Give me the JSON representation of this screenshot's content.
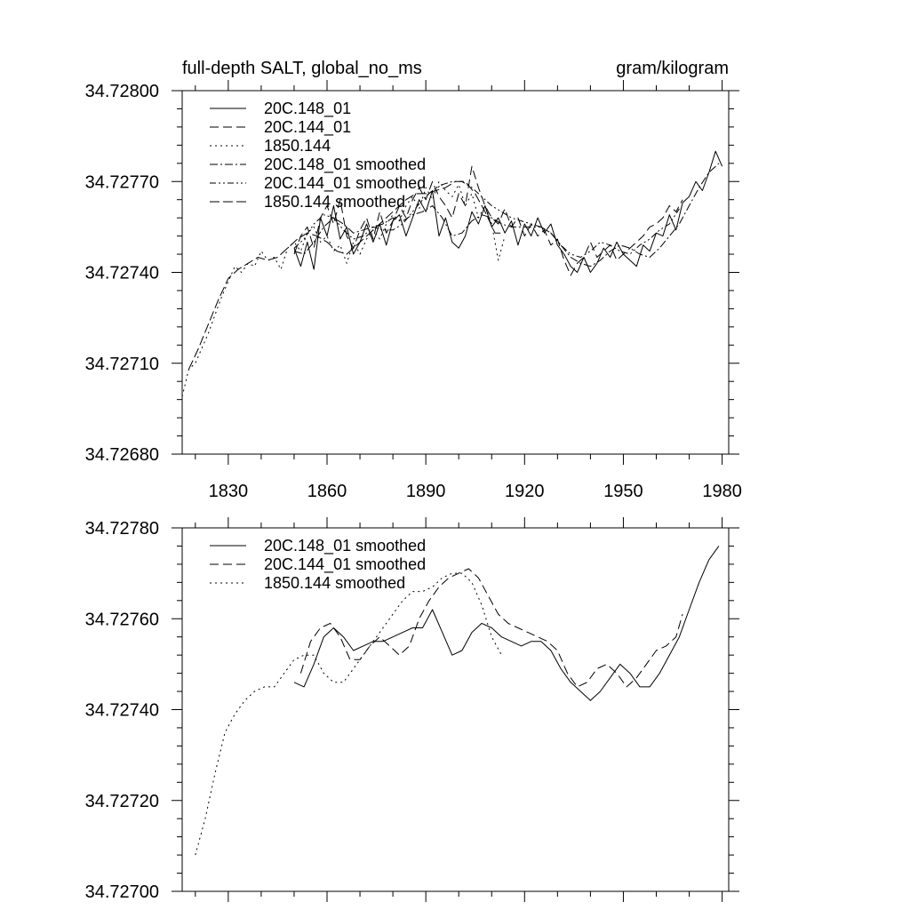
{
  "chart_data": [
    {
      "type": "line",
      "title": "full-depth SALT, global_no_ms",
      "units": "gram/kilogram",
      "xlim": [
        1816,
        1982
      ],
      "ylim": [
        34.7268,
        34.728
      ],
      "x_ticks": [
        1830,
        1860,
        1890,
        1920,
        1950,
        1980
      ],
      "x_tick_labels": [
        "1830",
        "1860",
        "1890",
        "1920",
        "1950",
        "1980"
      ],
      "y_ticks": [
        34.7268,
        34.7271,
        34.7274,
        34.7277,
        34.728
      ],
      "y_tick_labels": [
        "34.72680",
        "34.72710",
        "34.72740",
        "34.72770",
        "34.72800"
      ],
      "legend": [
        "20C.148_01",
        "20C.144_01",
        "1850.144",
        "20C.148_01 smoothed",
        "20C.144_01 smoothed",
        "1850.144 smoothed"
      ],
      "series": [
        {
          "name": "20C.148_01",
          "style": "solid",
          "x": [
            1850,
            1852,
            1854,
            1856,
            1858,
            1860,
            1862,
            1864,
            1866,
            1868,
            1870,
            1872,
            1874,
            1876,
            1878,
            1880,
            1882,
            1884,
            1886,
            1888,
            1890,
            1892,
            1894,
            1896,
            1898,
            1900,
            1902,
            1904,
            1906,
            1908,
            1910,
            1912,
            1914,
            1916,
            1918,
            1920,
            1922,
            1924,
            1926,
            1928,
            1930,
            1932,
            1934,
            1936,
            1938,
            1940,
            1942,
            1944,
            1946,
            1948,
            1950,
            1952,
            1954,
            1956,
            1958,
            1960,
            1962,
            1964,
            1966,
            1968,
            1970,
            1972,
            1974,
            1976,
            1978,
            1980
          ],
          "values": [
            34.72748,
            34.72742,
            34.7275,
            34.72741,
            34.72758,
            34.72752,
            34.72762,
            34.72751,
            34.72755,
            34.72746,
            34.7275,
            34.72756,
            34.7275,
            34.72756,
            34.72749,
            34.72757,
            34.72759,
            34.72752,
            34.72758,
            34.72764,
            34.7276,
            34.72767,
            34.72752,
            34.72758,
            34.7275,
            34.72748,
            34.72752,
            34.7276,
            34.72756,
            34.72762,
            34.72755,
            34.72758,
            34.72753,
            34.72757,
            34.72749,
            34.72756,
            34.72752,
            34.72758,
            34.72753,
            34.72756,
            34.72749,
            34.72746,
            34.72742,
            34.7274,
            34.72745,
            34.7274,
            34.72743,
            34.72748,
            34.72745,
            34.7275,
            34.72746,
            34.72744,
            34.72742,
            34.72749,
            34.72747,
            34.72753,
            34.72752,
            34.72759,
            34.72754,
            34.72763,
            34.72765,
            34.7277,
            34.72767,
            34.72773,
            34.7278,
            34.72775
          ]
        },
        {
          "name": "20C.144_01",
          "style": "dashed",
          "x": [
            1850,
            1852,
            1854,
            1856,
            1858,
            1860,
            1862,
            1864,
            1866,
            1868,
            1870,
            1872,
            1874,
            1876,
            1878,
            1880,
            1882,
            1884,
            1886,
            1888,
            1890,
            1892,
            1894,
            1896,
            1898,
            1900,
            1902,
            1904,
            1906,
            1908,
            1910,
            1912,
            1914,
            1916,
            1918,
            1920,
            1922,
            1924,
            1926,
            1928,
            1930,
            1932,
            1934,
            1936,
            1938,
            1940,
            1942,
            1944,
            1946,
            1948,
            1950,
            1952,
            1954,
            1956,
            1958,
            1960,
            1962,
            1964,
            1966,
            1968
          ],
          "values": [
            34.72746,
            34.72752,
            34.72755,
            34.72748,
            34.72758,
            34.72762,
            34.72756,
            34.72764,
            34.72752,
            34.72748,
            34.72754,
            34.72758,
            34.72751,
            34.7276,
            34.72753,
            34.72757,
            34.72762,
            34.72758,
            34.72764,
            34.72768,
            34.72764,
            34.7277,
            34.72765,
            34.72762,
            34.72758,
            34.72766,
            34.72762,
            34.72775,
            34.72768,
            34.72762,
            34.72758,
            34.72756,
            34.72761,
            34.72755,
            34.72758,
            34.72752,
            34.72756,
            34.72752,
            34.72754,
            34.72749,
            34.72751,
            34.72744,
            34.72739,
            34.72743,
            34.72745,
            34.7275,
            34.72745,
            34.72747,
            34.72749,
            34.72744,
            34.72746,
            34.72748,
            34.7275,
            34.72752,
            34.72755,
            34.72756,
            34.72758,
            34.72762,
            34.7276,
            34.72764
          ]
        },
        {
          "name": "1850.144",
          "style": "dotted",
          "x": [
            1816,
            1818,
            1820,
            1822,
            1824,
            1826,
            1828,
            1830,
            1832,
            1834,
            1836,
            1838,
            1840,
            1842,
            1844,
            1846,
            1848,
            1850,
            1852,
            1854,
            1856,
            1858,
            1860,
            1862,
            1864,
            1866,
            1868,
            1870,
            1872,
            1874,
            1876,
            1878,
            1880,
            1882,
            1884,
            1886,
            1888,
            1890,
            1892,
            1894,
            1896,
            1898,
            1900,
            1902,
            1904,
            1906,
            1908,
            1910,
            1912,
            1914
          ],
          "values": [
            34.72699,
            34.72708,
            34.7271,
            34.72715,
            34.7272,
            34.72726,
            34.72732,
            34.72737,
            34.72742,
            34.7274,
            34.72743,
            34.72742,
            34.72747,
            34.72744,
            34.72745,
            34.72741,
            34.72748,
            34.7275,
            34.72747,
            34.72753,
            34.72755,
            34.7275,
            34.72752,
            34.72747,
            34.72749,
            34.72743,
            34.7275,
            34.72746,
            34.72751,
            34.72754,
            34.72751,
            34.72756,
            34.72759,
            34.72757,
            34.72762,
            34.72765,
            34.72761,
            34.72768,
            34.72764,
            34.7277,
            34.72767,
            34.72765,
            34.72769,
            34.72762,
            34.72766,
            34.72758,
            34.72762,
            34.72756,
            34.72744,
            34.72752
          ]
        },
        {
          "name": "20C.148_01 smoothed",
          "style": "dash-dot",
          "x": [
            1850,
            1853,
            1856,
            1859,
            1862,
            1865,
            1868,
            1871,
            1874,
            1877,
            1880,
            1883,
            1886,
            1889,
            1892,
            1895,
            1898,
            1901,
            1904,
            1907,
            1910,
            1913,
            1916,
            1919,
            1922,
            1925,
            1928,
            1931,
            1934,
            1937,
            1940,
            1943,
            1946,
            1949,
            1952,
            1955,
            1958,
            1961,
            1964,
            1967,
            1970,
            1973,
            1976,
            1979
          ],
          "values": [
            34.72747,
            34.72746,
            34.7275,
            34.72755,
            34.72758,
            34.72756,
            34.72753,
            34.72754,
            34.72755,
            34.72756,
            34.72758,
            34.72757,
            34.72759,
            34.7276,
            34.72762,
            34.72758,
            34.72752,
            34.72753,
            34.72757,
            34.72759,
            34.72758,
            34.72756,
            34.72755,
            34.72755,
            34.72755,
            34.72755,
            34.72753,
            34.72749,
            34.72745,
            34.72743,
            34.72742,
            34.72744,
            34.72747,
            34.72749,
            34.72748,
            34.72746,
            34.72745,
            34.72748,
            34.72752,
            34.72756,
            34.72762,
            34.72768,
            34.72773,
            34.72776
          ]
        },
        {
          "name": "20C.144_01 smoothed",
          "style": "dash-dot-dot",
          "x": [
            1850,
            1853,
            1856,
            1859,
            1862,
            1865,
            1868,
            1871,
            1874,
            1877,
            1880,
            1883,
            1886,
            1889,
            1892,
            1895,
            1898,
            1901,
            1904,
            1907,
            1910,
            1913,
            1916,
            1919,
            1922,
            1925,
            1928,
            1931,
            1934,
            1937,
            1940,
            1943,
            1946,
            1949,
            1952,
            1955,
            1958,
            1961,
            1964,
            1967
          ],
          "values": [
            34.72748,
            34.72751,
            34.72756,
            34.72759,
            34.72758,
            34.72754,
            34.72751,
            34.72752,
            34.72755,
            34.72754,
            34.72754,
            34.72756,
            34.7276,
            34.72764,
            34.72767,
            34.72769,
            34.7277,
            34.7277,
            34.72768,
            34.72765,
            34.72762,
            34.7276,
            34.72758,
            34.72757,
            34.72756,
            34.72755,
            34.72753,
            34.72749,
            34.72746,
            34.72745,
            34.72747,
            34.7275,
            34.72749,
            34.72747,
            34.72746,
            34.72749,
            34.72751,
            34.72754,
            34.72756,
            34.72761
          ]
        },
        {
          "name": "1850.144 smoothed",
          "style": "long-dash",
          "x": [
            1818,
            1821,
            1824,
            1827,
            1830,
            1833,
            1836,
            1839,
            1842,
            1845,
            1848,
            1851,
            1854,
            1857,
            1860,
            1863,
            1866,
            1869,
            1872,
            1875,
            1878,
            1881,
            1884,
            1887,
            1890,
            1893,
            1896,
            1899,
            1902,
            1905,
            1908,
            1911,
            1913
          ],
          "values": [
            34.72708,
            34.72715,
            34.72723,
            34.72731,
            34.72738,
            34.72741,
            34.72743,
            34.72745,
            34.72744,
            34.72745,
            34.72748,
            34.72751,
            34.72753,
            34.72752,
            34.7275,
            34.72747,
            34.72746,
            34.72749,
            34.72752,
            34.72755,
            34.72758,
            34.72761,
            34.72764,
            34.72766,
            34.72766,
            34.72767,
            34.72768,
            34.7277,
            34.7277,
            34.72766,
            34.7276,
            34.72753,
            34.72753
          ]
        }
      ]
    },
    {
      "type": "line",
      "title": "",
      "xlim": [
        1816,
        1982
      ],
      "ylim": [
        34.727,
        34.7278
      ],
      "x_ticks": [
        1830,
        1860,
        1890,
        1920,
        1950,
        1980
      ],
      "y_ticks": [
        34.727,
        34.7272,
        34.7274,
        34.7276,
        34.7278
      ],
      "y_tick_labels": [
        "34.72700",
        "34.72720",
        "34.72740",
        "34.72760",
        "34.72780"
      ],
      "legend": [
        "20C.148_01 smoothed",
        "20C.144_01 smoothed",
        "1850.144 smoothed"
      ],
      "series": [
        {
          "name": "20C.148_01 smoothed",
          "style": "solid",
          "x": [
            1850,
            1853,
            1856,
            1859,
            1862,
            1865,
            1868,
            1871,
            1874,
            1877,
            1880,
            1883,
            1886,
            1889,
            1892,
            1895,
            1898,
            1901,
            1904,
            1907,
            1910,
            1913,
            1916,
            1919,
            1922,
            1925,
            1928,
            1931,
            1934,
            1937,
            1940,
            1943,
            1946,
            1949,
            1952,
            1955,
            1958,
            1961,
            1964,
            1967,
            1970,
            1973,
            1976,
            1979
          ],
          "values": [
            34.72746,
            34.72745,
            34.7275,
            34.72756,
            34.72758,
            34.72756,
            34.72753,
            34.72754,
            34.72755,
            34.72755,
            34.72756,
            34.72757,
            34.72758,
            34.72758,
            34.72762,
            34.72757,
            34.72752,
            34.72753,
            34.72757,
            34.72759,
            34.72758,
            34.72756,
            34.72755,
            34.72754,
            34.72755,
            34.72755,
            34.72753,
            34.72749,
            34.72746,
            34.72744,
            34.72742,
            34.72744,
            34.72747,
            34.7275,
            34.72748,
            34.72745,
            34.72745,
            34.72748,
            34.72752,
            34.72756,
            34.72762,
            34.72768,
            34.72773,
            34.72776
          ]
        },
        {
          "name": "20C.144_01 smoothed",
          "style": "dashed",
          "x": [
            1852,
            1855,
            1858,
            1861,
            1864,
            1867,
            1870,
            1873,
            1876,
            1879,
            1882,
            1885,
            1888,
            1891,
            1894,
            1897,
            1900,
            1903,
            1906,
            1909,
            1912,
            1915,
            1918,
            1921,
            1924,
            1927,
            1930,
            1933,
            1936,
            1939,
            1942,
            1945,
            1948,
            1951,
            1954,
            1957,
            1960,
            1963,
            1966,
            1968
          ],
          "values": [
            34.72748,
            34.72755,
            34.72758,
            34.72759,
            34.72756,
            34.72751,
            34.72751,
            34.72754,
            34.72756,
            34.72754,
            34.72752,
            34.72754,
            34.7276,
            34.72764,
            34.72767,
            34.72769,
            34.7277,
            34.72771,
            34.72769,
            34.72765,
            34.72761,
            34.72759,
            34.72758,
            34.72757,
            34.72756,
            34.72755,
            34.72753,
            34.72748,
            34.72745,
            34.72746,
            34.72749,
            34.7275,
            34.72748,
            34.72745,
            34.72747,
            34.7275,
            34.72753,
            34.72754,
            34.72756,
            34.72761
          ]
        },
        {
          "name": "1850.144 smoothed",
          "style": "dotted",
          "x": [
            1820,
            1823,
            1826,
            1829,
            1832,
            1835,
            1838,
            1841,
            1844,
            1847,
            1850,
            1853,
            1856,
            1859,
            1862,
            1865,
            1868,
            1871,
            1874,
            1877,
            1880,
            1883,
            1886,
            1889,
            1892,
            1895,
            1898,
            1901,
            1904,
            1907,
            1910,
            1913
          ],
          "values": [
            34.72708,
            34.72716,
            34.72726,
            34.72735,
            34.72739,
            34.72742,
            34.72744,
            34.72745,
            34.72745,
            34.72748,
            34.72751,
            34.72752,
            34.72752,
            34.72748,
            34.72746,
            34.72746,
            34.72749,
            34.72752,
            34.72755,
            34.72758,
            34.72761,
            34.72764,
            34.72766,
            34.72766,
            34.72767,
            34.72769,
            34.7277,
            34.7277,
            34.72768,
            34.72763,
            34.72756,
            34.72752
          ]
        }
      ]
    }
  ]
}
